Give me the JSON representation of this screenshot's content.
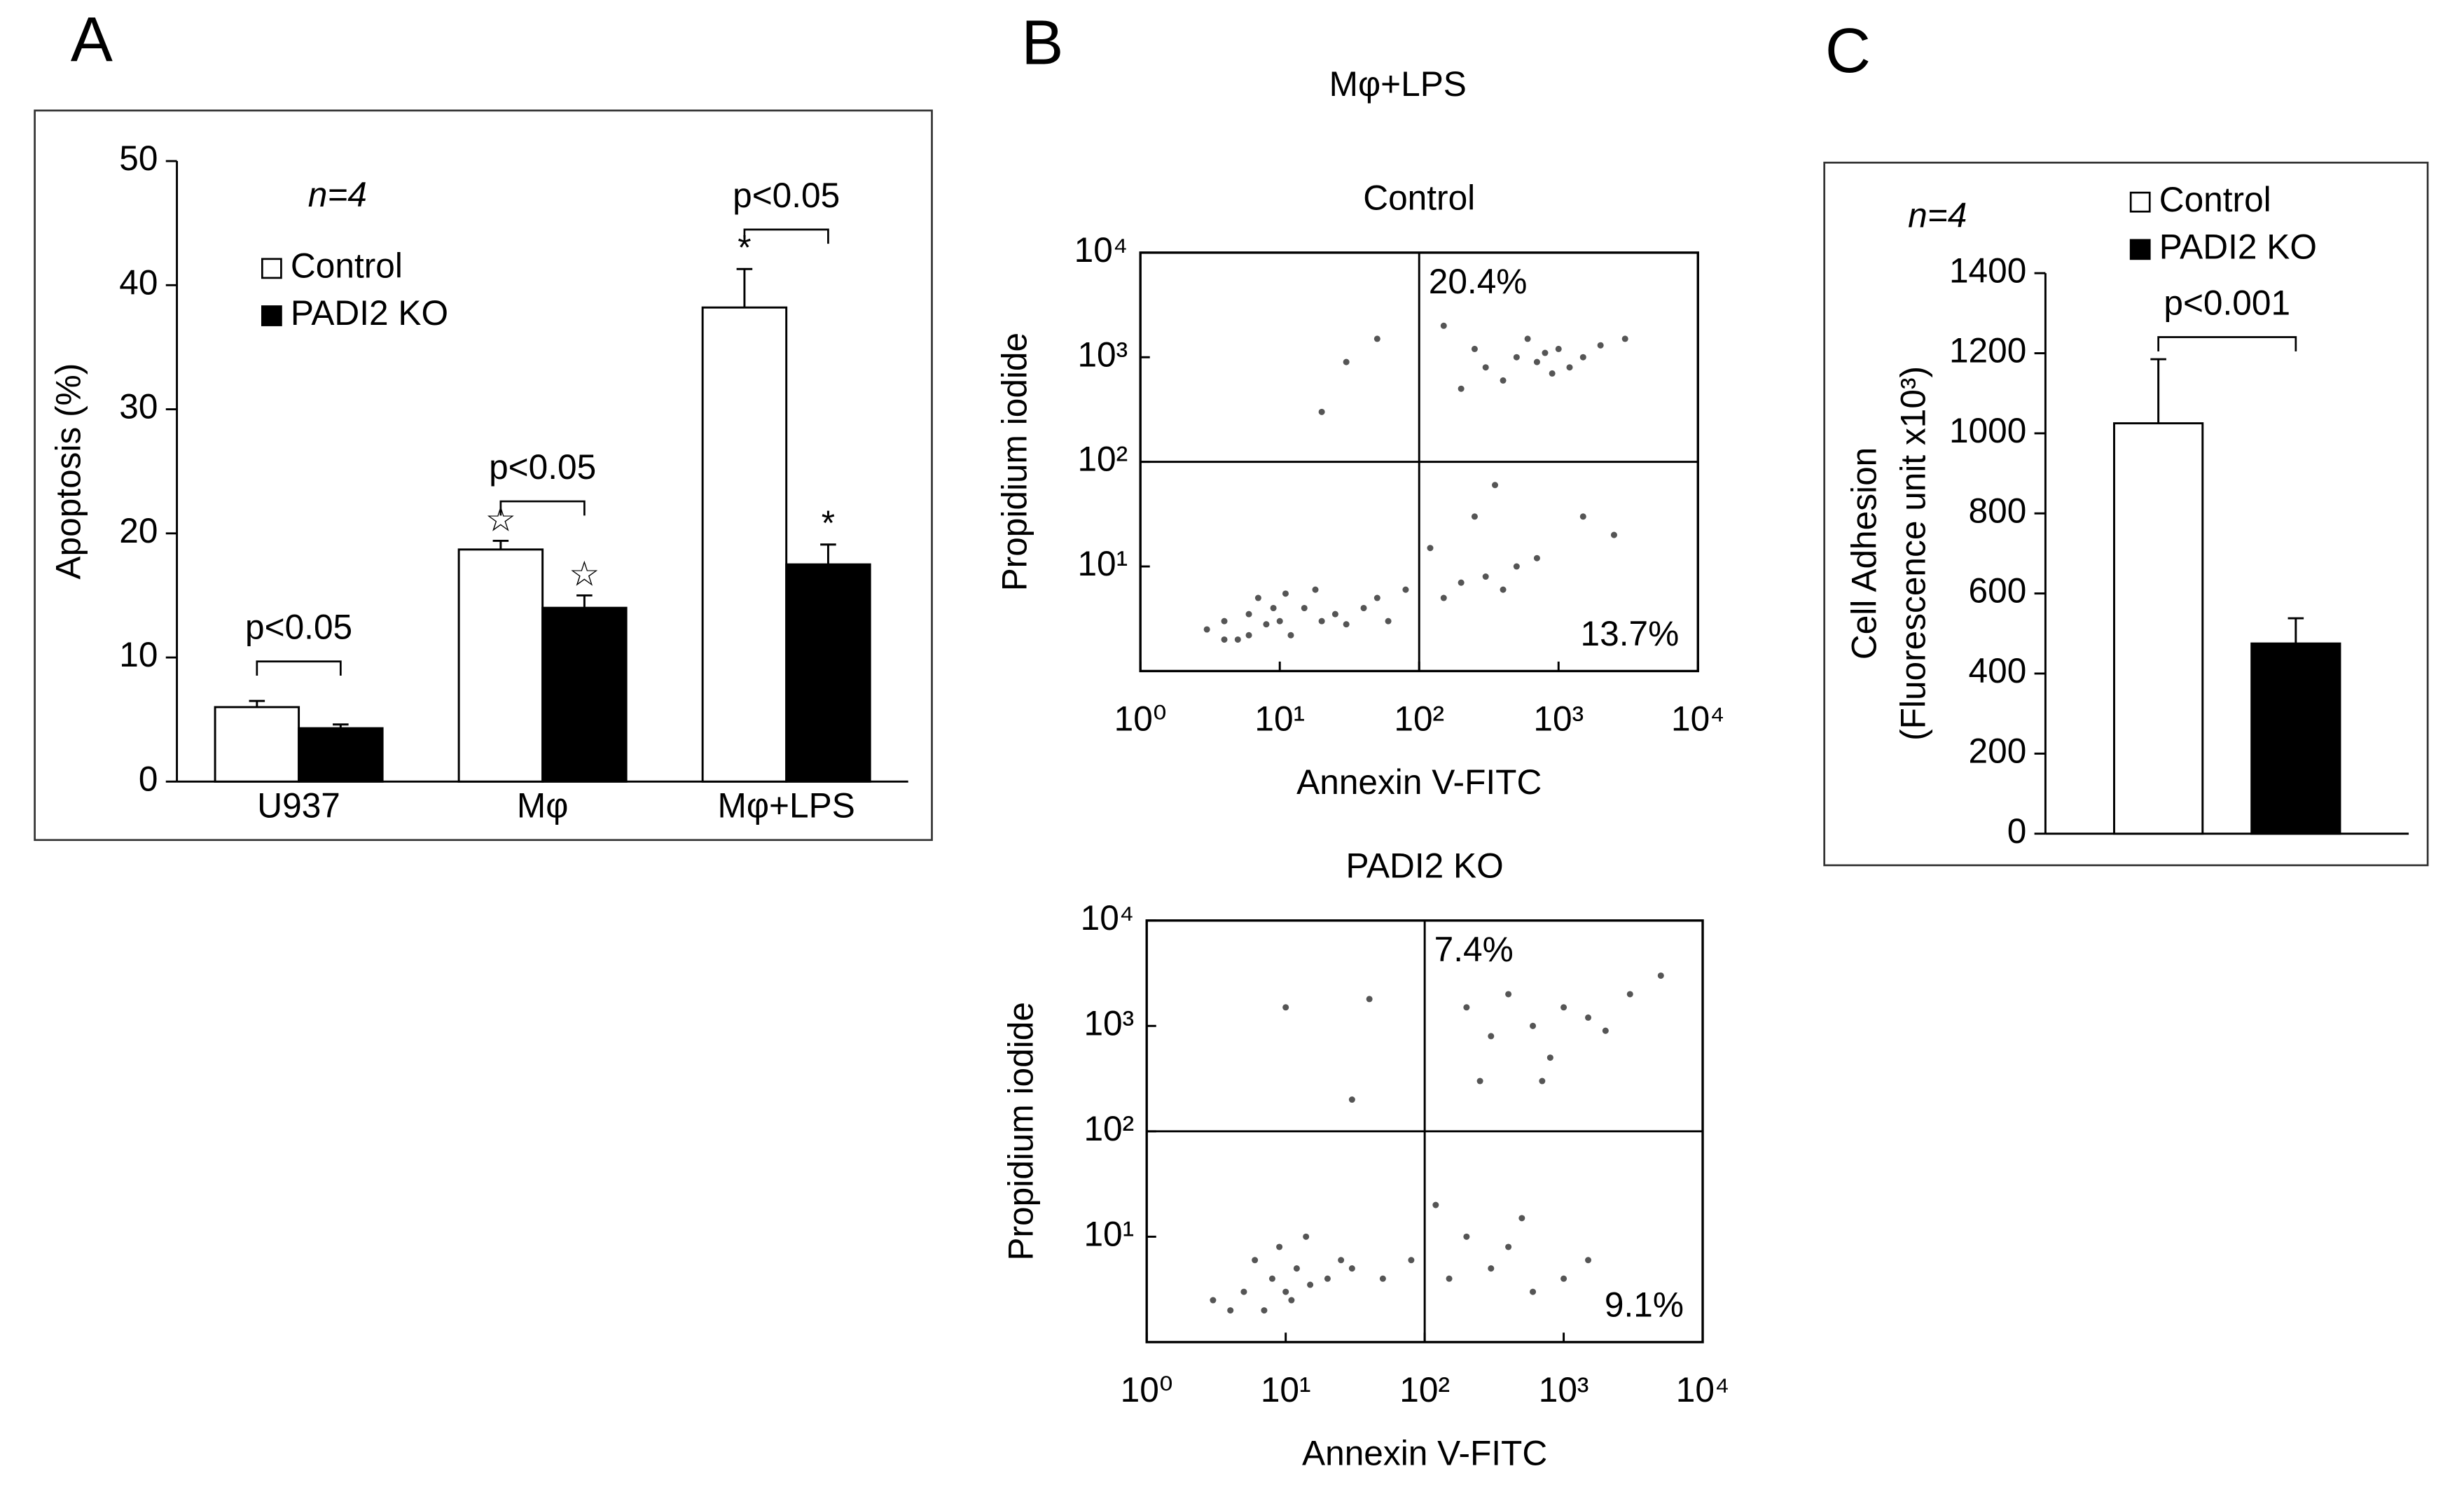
{
  "chart_data": [
    {
      "type": "bar",
      "panel": "A",
      "categories": [
        "U937",
        "Mφ",
        "Mφ+LPS"
      ],
      "ylabel": "Apoptosis (%)",
      "ylim": [
        0,
        50
      ],
      "yticks": [
        0,
        10,
        20,
        30,
        40,
        50
      ],
      "legend": "upper left",
      "annotation": "n=4",
      "p_labels": [
        "p<0.05",
        "p<0.05",
        "p<0.05"
      ],
      "series": [
        {
          "name": "Control",
          "color": "#ffffff",
          "values": [
            6.0,
            18.7,
            38.2
          ],
          "errors": [
            0.5,
            0.7,
            3.1
          ],
          "markers": [
            null,
            "☆",
            "*"
          ]
        },
        {
          "name": "PADI2 KO",
          "color": "#000000",
          "values": [
            4.3,
            14.0,
            17.5
          ],
          "errors": [
            0.3,
            1.0,
            1.6
          ],
          "markers": [
            null,
            "☆",
            "*"
          ]
        }
      ]
    },
    {
      "type": "scatter",
      "panel": "B",
      "supertitle": "Mφ+LPS",
      "title": "Control",
      "xlabel": "Annexin V-FITC",
      "ylabel": "Propidium iodide",
      "log_scale": true,
      "color": "#555555",
      "xlim": [
        1,
        10000
      ],
      "ylim": [
        1,
        10000
      ],
      "xticks": [
        {
          "value": 1,
          "label": "10⁰"
        },
        {
          "value": 10,
          "label": "10¹"
        },
        {
          "value": 100,
          "label": "10²"
        },
        {
          "value": 1000,
          "label": "10³"
        },
        {
          "value": 10000,
          "label": "10⁴"
        }
      ],
      "yticks": [
        {
          "value": 10,
          "label": "10¹"
        },
        {
          "value": 100,
          "label": "10²"
        },
        {
          "value": 1000,
          "label": "10³"
        },
        {
          "value": 10000,
          "label": "10⁴"
        }
      ],
      "quadrant": [
        100,
        100
      ],
      "quadrant_labels": {
        "upper_right": "20.4%",
        "lower_right": "13.7%"
      },
      "x": [
        3,
        4,
        5,
        6,
        8,
        10,
        12,
        15,
        7,
        20,
        25,
        30,
        9,
        4,
        6,
        11,
        18,
        40,
        50,
        60,
        80,
        150,
        200,
        300,
        400,
        500,
        700,
        120,
        250,
        350,
        300,
        500,
        700,
        1000,
        400,
        600,
        900,
        1500,
        2000,
        800,
        250,
        1200,
        3000,
        200,
        150,
        30,
        50,
        20,
        1500,
        2500
      ],
      "y": [
        2.5,
        3,
        2,
        3.5,
        2.8,
        3,
        2.2,
        4,
        5,
        3,
        3.5,
        2.8,
        4,
        2,
        2.2,
        5.5,
        6,
        4,
        5,
        3,
        6,
        5,
        7,
        8,
        6,
        10,
        12,
        15,
        30,
        60,
        800,
        1000,
        900,
        1200,
        600,
        1500,
        700,
        1000,
        1300,
        1100,
        1200,
        800,
        1500,
        500,
        2000,
        900,
        1500,
        300,
        30,
        20
      ]
    },
    {
      "type": "scatter",
      "title": "PADI2 KO",
      "xlabel": "Annexin V-FITC",
      "ylabel": "Propidium iodide",
      "log_scale": true,
      "color": "#555555",
      "xlim": [
        1,
        10000
      ],
      "ylim": [
        1,
        10000
      ],
      "xticks": [
        {
          "value": 1,
          "label": "10⁰"
        },
        {
          "value": 10,
          "label": "10¹"
        },
        {
          "value": 100,
          "label": "10²"
        },
        {
          "value": 1000,
          "label": "10³"
        },
        {
          "value": 10000,
          "label": "10⁴"
        }
      ],
      "yticks": [
        {
          "value": 10,
          "label": "10¹"
        },
        {
          "value": 100,
          "label": "10²"
        },
        {
          "value": 1000,
          "label": "10³"
        },
        {
          "value": 10000,
          "label": "10⁴"
        }
      ],
      "quadrant": [
        100,
        100
      ],
      "quadrant_labels": {
        "upper_right": "7.4%",
        "lower_right": "9.1%"
      },
      "x": [
        3,
        5,
        7,
        8,
        10,
        12,
        15,
        6,
        9,
        4,
        20,
        25,
        11,
        14,
        30,
        50,
        80,
        150,
        300,
        600,
        1000,
        200,
        400,
        120,
        500,
        1500,
        300,
        600,
        1000,
        2000,
        400,
        800,
        1500,
        250,
        3000,
        700,
        200,
        5000,
        10,
        40,
        30
      ],
      "y": [
        2.5,
        3,
        2,
        4,
        3,
        5,
        3.5,
        6,
        8,
        2,
        4,
        6,
        2.5,
        10,
        5,
        4,
        6,
        4,
        5,
        3,
        4,
        10,
        8,
        20,
        15,
        6,
        800,
        1000,
        1500,
        900,
        2000,
        500,
        1200,
        300,
        2000,
        300,
        1500,
        3000,
        1500,
        1800,
        200
      ]
    },
    {
      "type": "bar",
      "panel": "C",
      "ylabel": [
        "Cell Adhesion",
        "(Fluorescence unit x10³)"
      ],
      "ylim": [
        0,
        1400
      ],
      "yticks": [
        0,
        200,
        400,
        600,
        800,
        1000,
        1200,
        1400
      ],
      "legend": "upper right",
      "annotation": "n=4",
      "p_labels": [
        "p<0.001"
      ],
      "series": [
        {
          "name": "Control",
          "color": "#ffffff",
          "values": [
            1025
          ],
          "errors": [
            160
          ]
        },
        {
          "name": "PADI2 KO",
          "color": "#000000",
          "values": [
            475
          ],
          "errors": [
            63
          ]
        }
      ]
    }
  ]
}
